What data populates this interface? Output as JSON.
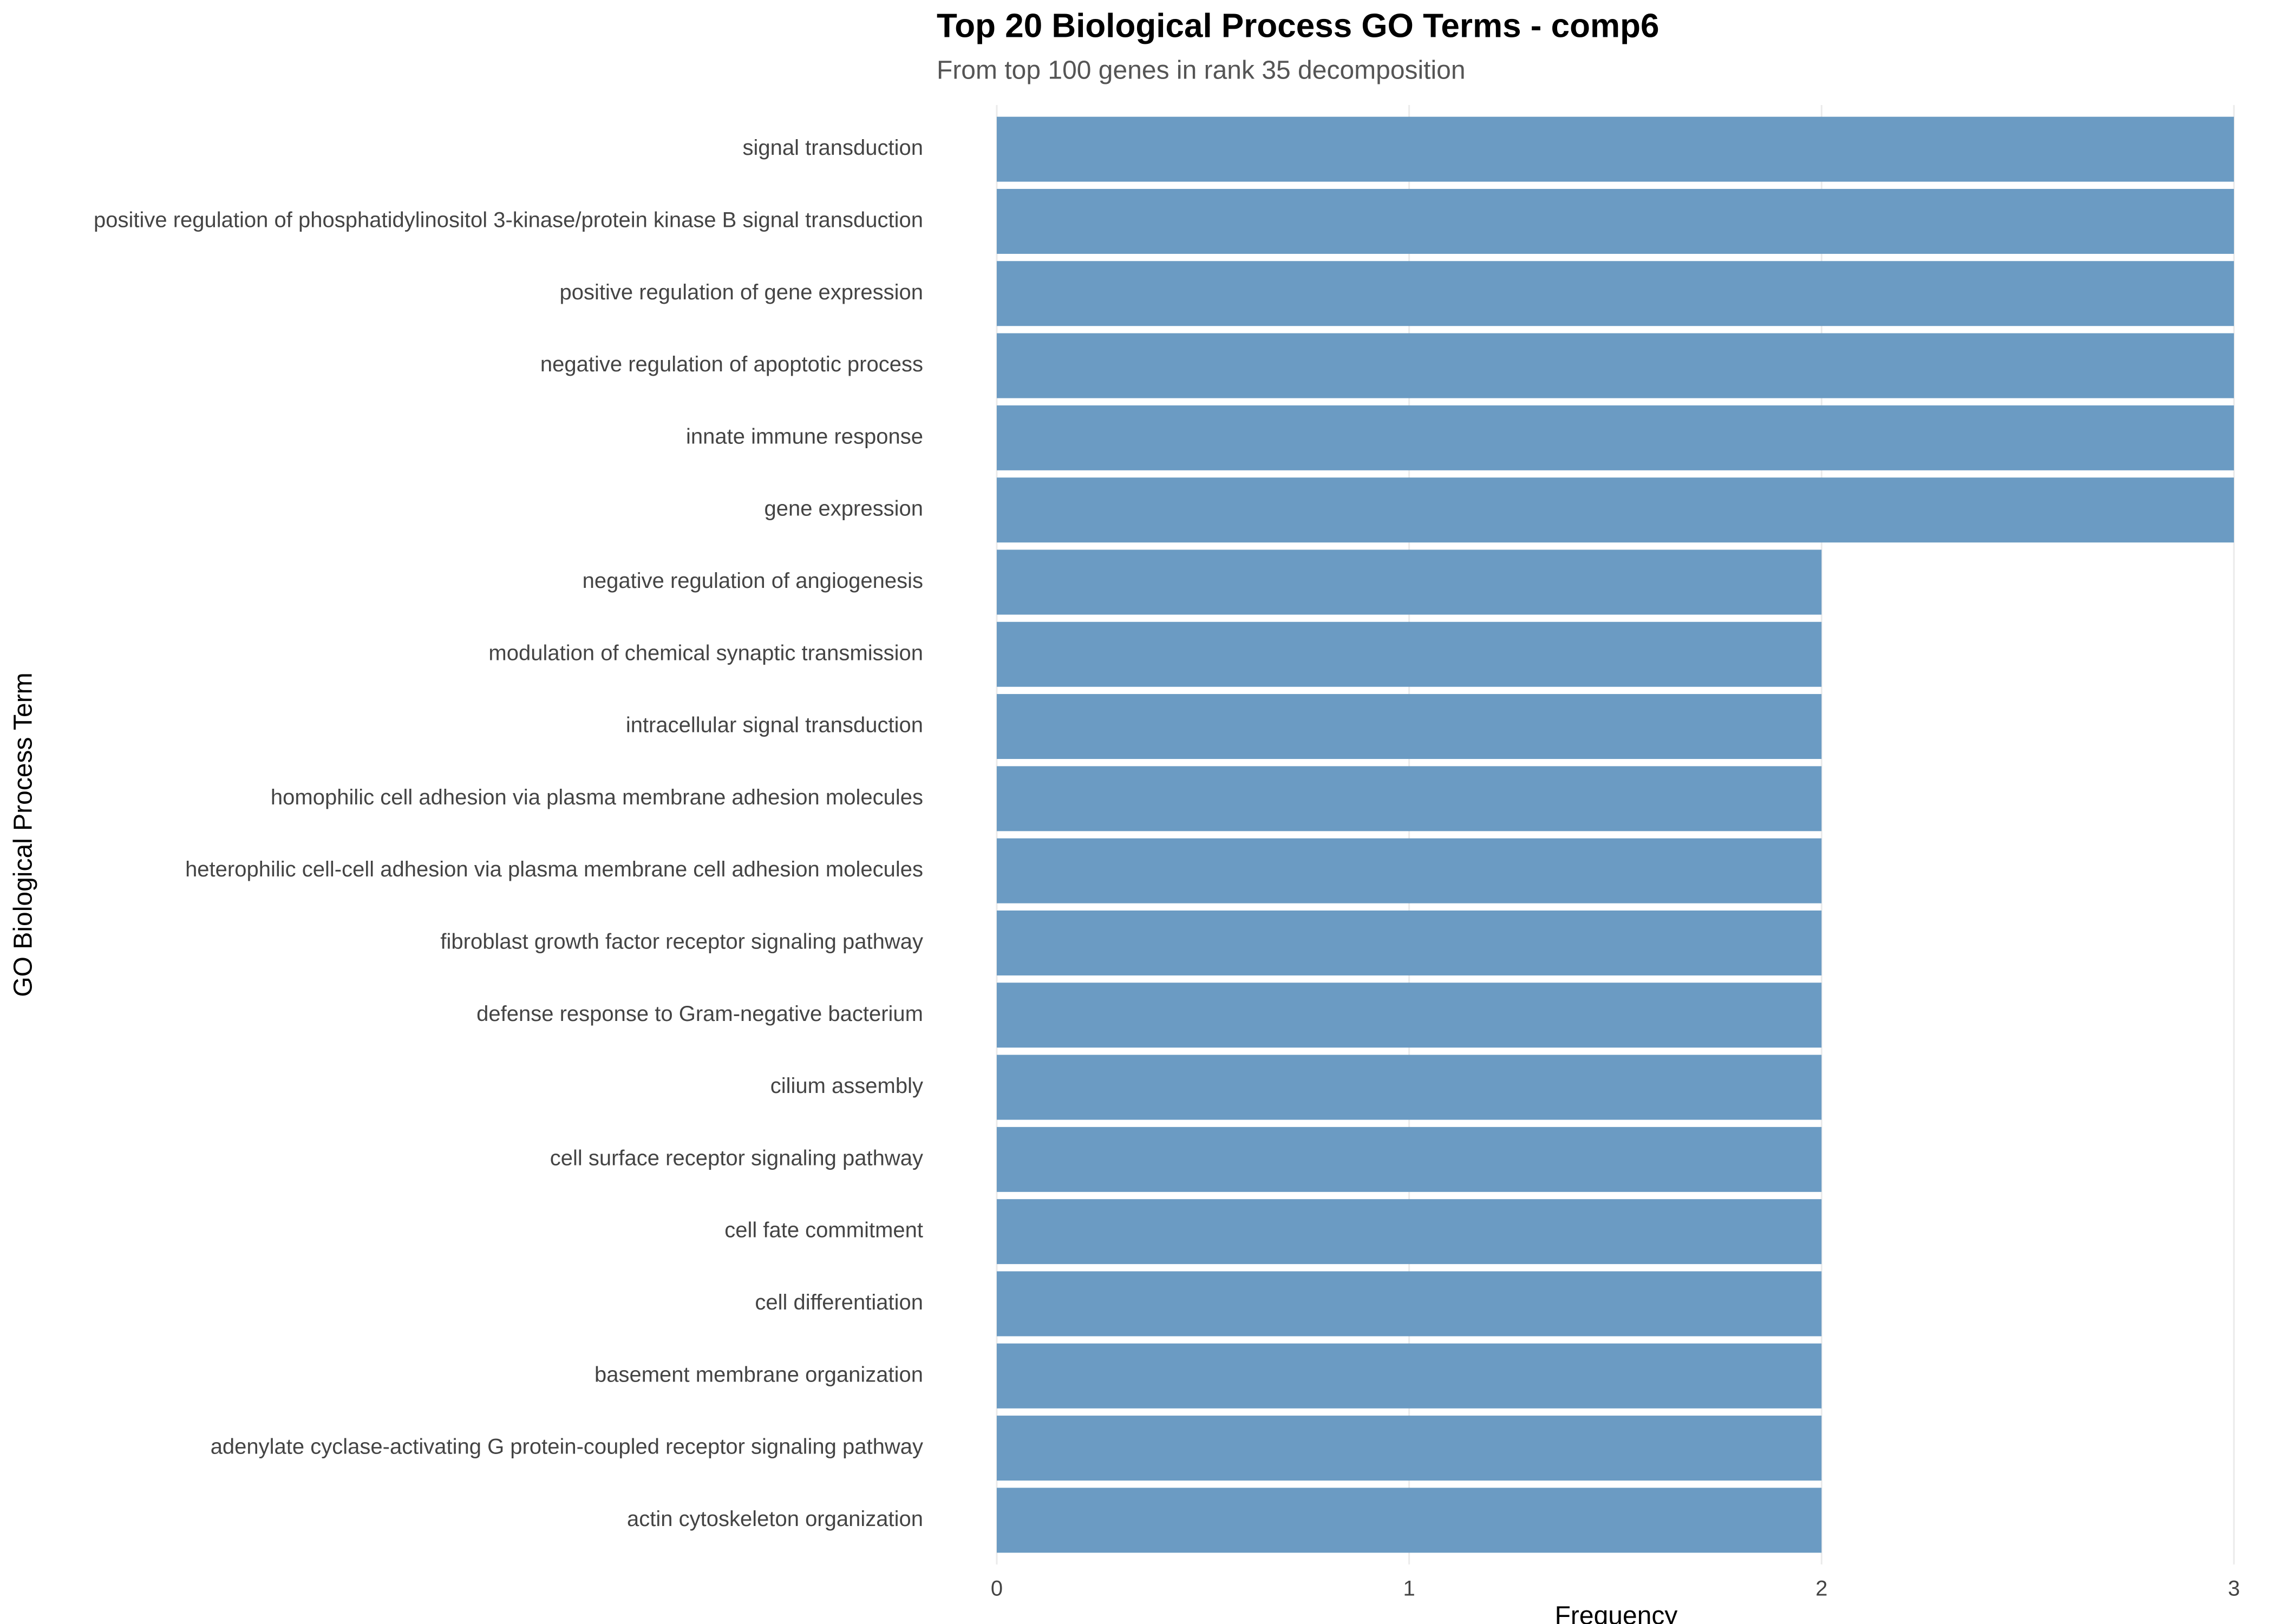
{
  "chart_data": {
    "type": "bar",
    "orientation": "horizontal",
    "title": "Top 20 Biological Process GO Terms - comp6",
    "subtitle": "From top 100 genes in rank 35 decomposition",
    "x_label": "Frequency",
    "y_label": "GO Biological Process Term",
    "categories": [
      "signal transduction",
      "positive regulation of phosphatidylinositol 3-kinase/protein kinase B signal transduction",
      "positive regulation of gene expression",
      "negative regulation of apoptotic process",
      "innate immune response",
      "gene expression",
      "negative regulation of angiogenesis",
      "modulation of chemical synaptic transmission",
      "intracellular signal transduction",
      "homophilic cell adhesion via plasma membrane adhesion molecules",
      "heterophilic cell-cell adhesion via plasma membrane cell adhesion molecules",
      "fibroblast growth factor receptor signaling pathway",
      "defense response to Gram-negative bacterium",
      "cilium assembly",
      "cell surface receptor signaling pathway",
      "cell fate commitment",
      "cell differentiation",
      "basement membrane organization",
      "adenylate cyclase-activating G protein-coupled receptor signaling pathway",
      "actin cytoskeleton organization"
    ],
    "values": [
      3,
      3,
      3,
      3,
      3,
      3,
      2,
      2,
      2,
      2,
      2,
      2,
      2,
      2,
      2,
      2,
      2,
      2,
      2,
      2
    ],
    "color": "#6b9bc3",
    "xlim": [
      0,
      3
    ],
    "xticks": [
      0,
      1,
      2,
      3
    ],
    "grid": true
  }
}
